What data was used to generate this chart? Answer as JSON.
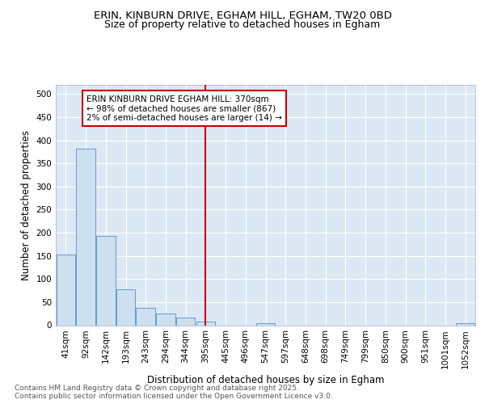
{
  "title1": "ERIN, KINBURN DRIVE, EGHAM HILL, EGHAM, TW20 0BD",
  "title2": "Size of property relative to detached houses in Egham",
  "xlabel": "Distribution of detached houses by size in Egham",
  "ylabel": "Number of detached properties",
  "bar_labels": [
    "41sqm",
    "92sqm",
    "142sqm",
    "193sqm",
    "243sqm",
    "294sqm",
    "344sqm",
    "395sqm",
    "445sqm",
    "496sqm",
    "547sqm",
    "597sqm",
    "648sqm",
    "698sqm",
    "749sqm",
    "799sqm",
    "850sqm",
    "900sqm",
    "951sqm",
    "1001sqm",
    "1052sqm"
  ],
  "bar_values": [
    153,
    382,
    193,
    77,
    38,
    25,
    17,
    7,
    0,
    0,
    4,
    0,
    0,
    0,
    0,
    0,
    0,
    0,
    0,
    0,
    4
  ],
  "bar_color": "#cce0f0",
  "bar_edge_color": "#6699cc",
  "red_line_x": 7.0,
  "annotation_text": "ERIN KINBURN DRIVE EGHAM HILL: 370sqm\n← 98% of detached houses are smaller (867)\n2% of semi-detached houses are larger (14) →",
  "annotation_box_color": "#ffffff",
  "annotation_box_edge": "#cc0000",
  "ylim": [
    0,
    520
  ],
  "yticks": [
    0,
    50,
    100,
    150,
    200,
    250,
    300,
    350,
    400,
    450,
    500
  ],
  "background_color": "#dce8f4",
  "grid_color": "#ffffff",
  "footer_text": "Contains HM Land Registry data © Crown copyright and database right 2025.\nContains public sector information licensed under the Open Government Licence v3.0.",
  "title_fontsize": 9.5,
  "subtitle_fontsize": 9,
  "axis_label_fontsize": 8.5,
  "tick_fontsize": 7.5,
  "annotation_fontsize": 7.5,
  "footer_fontsize": 6.5
}
